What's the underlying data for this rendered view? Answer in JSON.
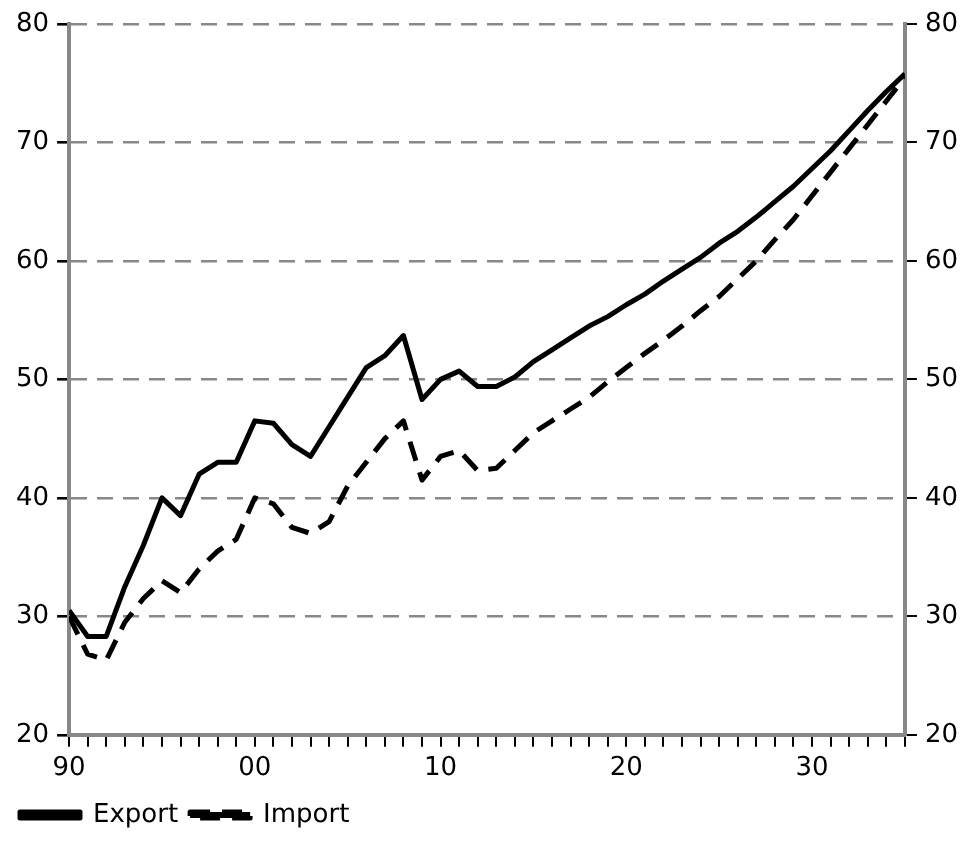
{
  "chart_data": {
    "type": "line",
    "x": [
      1990,
      1991,
      1992,
      1993,
      1994,
      1995,
      1996,
      1997,
      1998,
      1999,
      2000,
      2001,
      2002,
      2003,
      2004,
      2005,
      2006,
      2007,
      2008,
      2009,
      2010,
      2011,
      2012,
      2013,
      2014,
      2015,
      2016,
      2017,
      2018,
      2019,
      2020,
      2021,
      2022,
      2023,
      2024,
      2025,
      2026,
      2027,
      2028,
      2029,
      2030,
      2031,
      2032,
      2033,
      2034,
      2035
    ],
    "series": [
      {
        "name": "Export",
        "color": "#000000",
        "line_style": "solid",
        "values": [
          30.5,
          28.3,
          28.3,
          32.5,
          36,
          40,
          38.5,
          42,
          43,
          43,
          46.5,
          46.3,
          44.5,
          43.5,
          46,
          48.5,
          51,
          52,
          53.7,
          48.3,
          50,
          50.7,
          49.4,
          49.4,
          50.2,
          51.5,
          52.5,
          53.5,
          54.5,
          55.3,
          56.3,
          57.2,
          58.3,
          59.3,
          60.3,
          61.5,
          62.5,
          63.7,
          65,
          66.3,
          67.8,
          69.3,
          71,
          72.7,
          74.3,
          75.8
        ]
      },
      {
        "name": "Import",
        "color": "#000000",
        "line_style": "dashed",
        "values": [
          30,
          26.8,
          26.3,
          29.5,
          31.5,
          33,
          32,
          34,
          35.5,
          36.5,
          40,
          39.5,
          37.5,
          37,
          38,
          41,
          43,
          45,
          46.5,
          41.5,
          43.5,
          44,
          42.3,
          42.5,
          44,
          45.5,
          46.5,
          47.5,
          48.5,
          49.8,
          51,
          52.2,
          53.3,
          54.5,
          55.8,
          57,
          58.5,
          60,
          61.8,
          63.5,
          65.5,
          67.5,
          69.5,
          71.5,
          73.5,
          75.5
        ]
      }
    ],
    "xlim": [
      1990,
      2035
    ],
    "xticks": [
      {
        "value": 1990,
        "label": "90"
      },
      {
        "value": 1991,
        "label": null
      },
      {
        "value": 1992,
        "label": null
      },
      {
        "value": 1993,
        "label": null
      },
      {
        "value": 1994,
        "label": null
      },
      {
        "value": 1995,
        "label": null
      },
      {
        "value": 1996,
        "label": null
      },
      {
        "value": 1997,
        "label": null
      },
      {
        "value": 1998,
        "label": null
      },
      {
        "value": 1999,
        "label": null
      },
      {
        "value": 2000,
        "label": "00"
      },
      {
        "value": 2001,
        "label": null
      },
      {
        "value": 2002,
        "label": null
      },
      {
        "value": 2003,
        "label": null
      },
      {
        "value": 2004,
        "label": null
      },
      {
        "value": 2005,
        "label": null
      },
      {
        "value": 2006,
        "label": null
      },
      {
        "value": 2007,
        "label": null
      },
      {
        "value": 2008,
        "label": null
      },
      {
        "value": 2009,
        "label": null
      },
      {
        "value": 2010,
        "label": "10"
      },
      {
        "value": 2011,
        "label": null
      },
      {
        "value": 2012,
        "label": null
      },
      {
        "value": 2013,
        "label": null
      },
      {
        "value": 2014,
        "label": null
      },
      {
        "value": 2015,
        "label": null
      },
      {
        "value": 2016,
        "label": null
      },
      {
        "value": 2017,
        "label": null
      },
      {
        "value": 2018,
        "label": null
      },
      {
        "value": 2019,
        "label": null
      },
      {
        "value": 2020,
        "label": "20"
      },
      {
        "value": 2021,
        "label": null
      },
      {
        "value": 2022,
        "label": null
      },
      {
        "value": 2023,
        "label": null
      },
      {
        "value": 2024,
        "label": null
      },
      {
        "value": 2025,
        "label": null
      },
      {
        "value": 2026,
        "label": null
      },
      {
        "value": 2027,
        "label": null
      },
      {
        "value": 2028,
        "label": null
      },
      {
        "value": 2029,
        "label": null
      },
      {
        "value": 2030,
        "label": "30"
      },
      {
        "value": 2031,
        "label": null
      },
      {
        "value": 2032,
        "label": null
      },
      {
        "value": 2033,
        "label": null
      },
      {
        "value": 2034,
        "label": null
      },
      {
        "value": 2035,
        "label": null
      }
    ],
    "ylim": [
      20,
      80
    ],
    "yticks": [
      20,
      30,
      40,
      50,
      60,
      70,
      80
    ],
    "y2lim": [
      20,
      80
    ],
    "y2ticks": [
      20,
      30,
      40,
      50,
      60,
      70,
      80
    ],
    "grid": "y",
    "legend": "bottom left",
    "marker": "none"
  }
}
